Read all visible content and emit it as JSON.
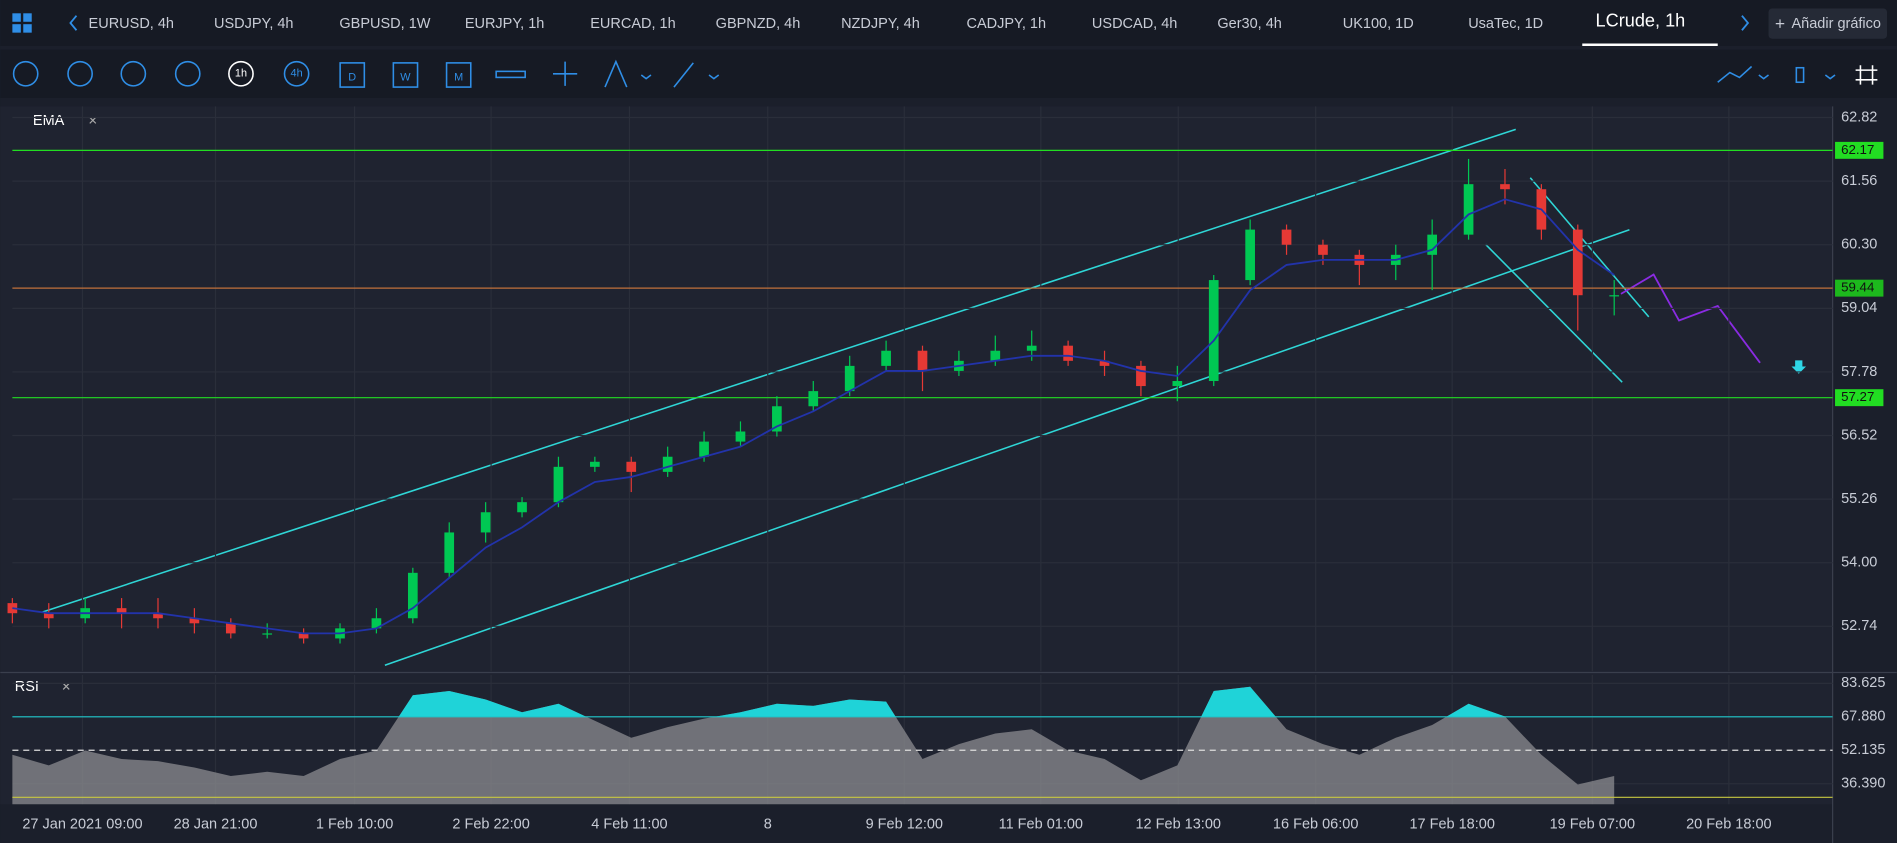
{
  "tabs": [
    "EURUSD, 4h",
    "USDJPY, 4h",
    "GBPUSD, 1W",
    "EURJPY, 1h",
    "EURCAD, 1h",
    "GBPNZD, 4h",
    "NZDJPY, 4h",
    "CADJPY, 1h",
    "USDCAD, 4h",
    "Ger30, 4h",
    "UK100, 1D",
    "UsaTec, 1D",
    "LCrude, 1h"
  ],
  "active_tab": 12,
  "add_chart": "Añadir gráfico",
  "toolbar": {
    "timeframes": [
      "1h",
      "4h",
      "D",
      "W",
      "M"
    ]
  },
  "chart_data": [
    {
      "type": "candlestick",
      "title": "EMA",
      "x": [
        0,
        2,
        4,
        6,
        8,
        10,
        12,
        14,
        16,
        18,
        20,
        22,
        24,
        26,
        28,
        30,
        32,
        34,
        36,
        38,
        40,
        42,
        44,
        46,
        48,
        50,
        52,
        54,
        56,
        58,
        60,
        62,
        64,
        66,
        68,
        70,
        72,
        74,
        76,
        78,
        80,
        82,
        84,
        86,
        88
      ],
      "open": [
        53.2,
        53.0,
        52.9,
        53.1,
        53.0,
        52.9,
        52.8,
        52.6,
        52.6,
        52.5,
        52.7,
        52.9,
        53.8,
        54.6,
        55.0,
        55.2,
        55.9,
        56.0,
        55.8,
        56.1,
        56.4,
        56.6,
        57.1,
        57.4,
        57.9,
        58.2,
        57.8,
        58.0,
        58.2,
        58.3,
        58.0,
        57.9,
        57.5,
        57.6,
        59.6,
        60.6,
        60.3,
        60.1,
        59.9,
        60.1,
        60.5,
        61.5,
        61.4,
        60.6,
        59.3
      ],
      "high": [
        53.3,
        53.2,
        53.3,
        53.3,
        53.3,
        53.1,
        52.9,
        52.8,
        52.7,
        52.8,
        53.1,
        53.9,
        54.8,
        55.2,
        55.3,
        56.1,
        56.1,
        56.1,
        56.3,
        56.6,
        56.8,
        57.3,
        57.6,
        58.1,
        58.4,
        58.3,
        58.2,
        58.5,
        58.6,
        58.4,
        58.2,
        58.0,
        57.9,
        59.7,
        60.8,
        60.7,
        60.4,
        60.2,
        60.3,
        60.8,
        62.0,
        61.8,
        61.5,
        60.7,
        59.6
      ],
      "low": [
        52.8,
        52.7,
        52.8,
        52.7,
        52.7,
        52.6,
        52.5,
        52.5,
        52.4,
        52.4,
        52.6,
        52.8,
        53.7,
        54.4,
        54.9,
        55.1,
        55.8,
        55.4,
        55.7,
        56.0,
        56.3,
        56.5,
        57.0,
        57.3,
        57.8,
        57.4,
        57.7,
        57.9,
        58.0,
        57.9,
        57.7,
        57.3,
        57.2,
        57.5,
        59.5,
        60.1,
        59.9,
        59.5,
        59.6,
        59.4,
        60.4,
        61.1,
        60.4,
        58.6,
        58.9
      ],
      "close": [
        53.0,
        52.9,
        53.1,
        53.0,
        52.9,
        52.8,
        52.6,
        52.6,
        52.5,
        52.7,
        52.9,
        53.8,
        54.6,
        55.0,
        55.2,
        55.9,
        56.0,
        55.8,
        56.1,
        56.4,
        56.6,
        57.1,
        57.4,
        57.9,
        58.2,
        57.8,
        58.0,
        58.2,
        58.3,
        58.0,
        57.9,
        57.5,
        57.6,
        59.6,
        60.6,
        60.3,
        60.1,
        59.9,
        60.1,
        60.5,
        61.5,
        61.4,
        60.6,
        59.3,
        59.3
      ],
      "up_color": "#00c853",
      "down_color": "#e53935",
      "series": [
        {
          "name": "EMA",
          "color": "#2233aa",
          "values": [
            53.1,
            53.0,
            53.0,
            53.0,
            53.0,
            52.9,
            52.8,
            52.7,
            52.6,
            52.6,
            52.7,
            53.1,
            53.7,
            54.3,
            54.7,
            55.2,
            55.6,
            55.7,
            55.9,
            56.1,
            56.3,
            56.7,
            57.0,
            57.4,
            57.8,
            57.8,
            57.9,
            58.0,
            58.1,
            58.1,
            58.0,
            57.8,
            57.7,
            58.4,
            59.4,
            59.9,
            60.0,
            60.0,
            60.0,
            60.2,
            60.9,
            61.2,
            61.0,
            60.2,
            59.7
          ]
        }
      ],
      "levels": [
        {
          "value": 62.17,
          "color": "#22dd22",
          "label_color": "#22dd22"
        },
        {
          "value": 59.44,
          "color": "#c0703a",
          "label_color": "#1db81d"
        },
        {
          "value": 57.27,
          "color": "#22dd22",
          "label_color": "#22dd22"
        }
      ],
      "xlim": [
        0,
        100
      ],
      "ylim": [
        51.85,
        63.04
      ],
      "yticks": [
        62.82,
        61.56,
        {
          "value": 60.3,
          "label": "60.30"
        },
        59.04,
        57.78,
        56.52,
        55.26,
        {
          "value": 54,
          "label": "54.00"
        },
        52.74
      ],
      "grid": true
    },
    {
      "type": "area",
      "title": "RSI",
      "x": [
        0,
        2,
        4,
        6,
        8,
        10,
        12,
        14,
        16,
        18,
        20,
        22,
        24,
        26,
        28,
        30,
        32,
        34,
        36,
        38,
        40,
        42,
        44,
        46,
        48,
        50,
        52,
        54,
        56,
        58,
        60,
        62,
        64,
        66,
        68,
        70,
        72,
        74,
        76,
        78,
        80,
        82,
        84,
        86,
        88
      ],
      "values": [
        50,
        45,
        52,
        48,
        47,
        44,
        40,
        42,
        40,
        48,
        52,
        78,
        80,
        76,
        70,
        74,
        66,
        58,
        63,
        67,
        70,
        74,
        73,
        76,
        75,
        48,
        55,
        60,
        62,
        52,
        48,
        38,
        45,
        80,
        82,
        62,
        55,
        50,
        58,
        64,
        74,
        68,
        50,
        36,
        40
      ],
      "color": "#8c8c90",
      "highlight_color": "#1fd3d8",
      "levels": [
        {
          "value": 67.88,
          "color": "#1fc8cc",
          "style": "solid"
        },
        {
          "value": 52.135,
          "color": "#dddddd",
          "style": "dashed"
        },
        {
          "value": 30,
          "color": "#c8c840",
          "style": "solid"
        }
      ],
      "xlim": [
        0,
        100
      ],
      "ylim": [
        26.71,
        87.61
      ],
      "yticks": [
        83.625,
        {
          "value": 67.88,
          "label": "67.880"
        },
        52.135,
        {
          "value": 36.39,
          "label": "36.390"
        }
      ],
      "xticks": [
        {
          "value": 3.85,
          "label": "27 Jan 2021 09:00"
        },
        {
          "value": 11.16,
          "label": "28 Jan 21:00"
        },
        {
          "value": 18.8,
          "label": "1 Feb 10:00"
        },
        {
          "value": 26.3,
          "label": "2 Feb 22:00"
        },
        {
          "value": 33.9,
          "label": "4 Feb 11:00"
        },
        {
          "value": 41.5,
          "label": "8"
        },
        {
          "value": 49,
          "label": "9 Feb 12:00"
        },
        {
          "value": 56.5,
          "label": "11 Feb 01:00"
        },
        {
          "value": 64.05,
          "label": "12 Feb 13:00"
        },
        {
          "value": 71.6,
          "label": "16 Feb 06:00"
        },
        {
          "value": 79.1,
          "label": "17 Feb 18:00"
        },
        {
          "value": 86.8,
          "label": "19 Feb 07:00"
        },
        {
          "value": 94.3,
          "label": "20 Feb 18:00"
        }
      ],
      "grid": true
    }
  ]
}
